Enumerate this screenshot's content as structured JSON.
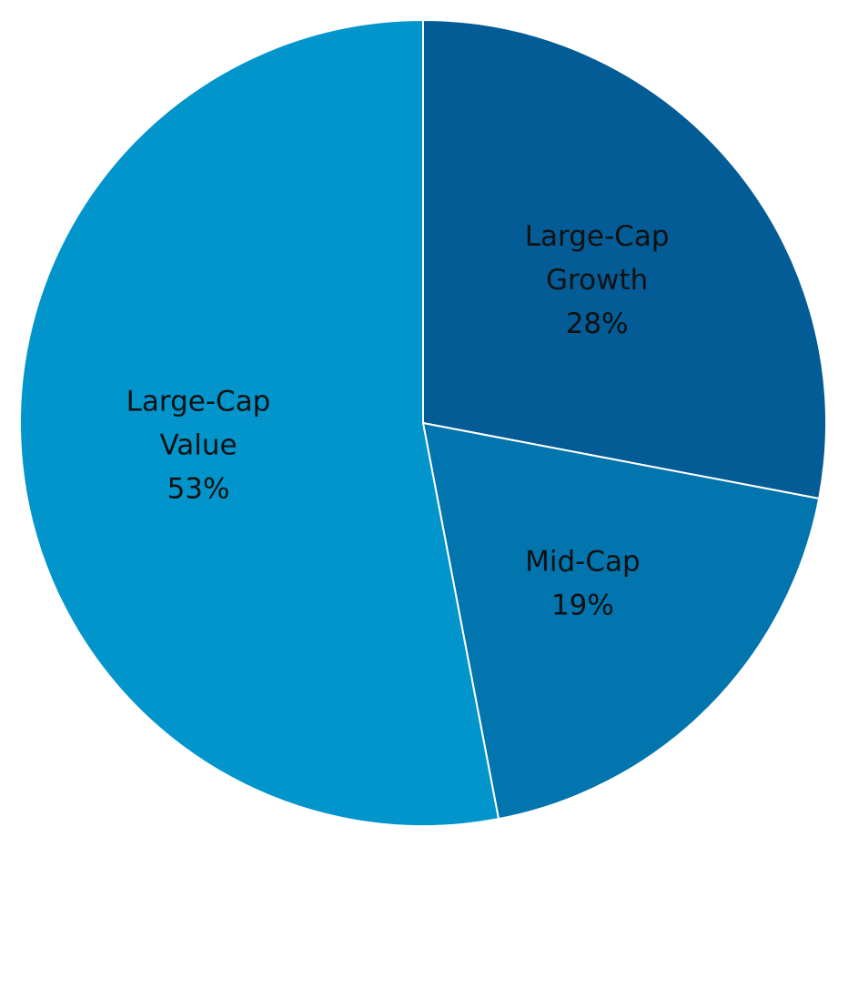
{
  "chart_data": {
    "type": "pie",
    "title": "",
    "start_angle_deg": 90,
    "direction": "clockwise",
    "slices": [
      {
        "name_lines": [
          "Large-Cap",
          "Growth"
        ],
        "percent_label": "28%",
        "value": 28,
        "color": "#045C96"
      },
      {
        "name_lines": [
          "Mid-Cap"
        ],
        "percent_label": "19%",
        "value": 19,
        "color": "#0274AE"
      },
      {
        "name_lines": [
          "Large-Cap",
          "Value"
        ],
        "percent_label": "53%",
        "value": 53,
        "color": "#0295CC"
      }
    ],
    "slice_separator_color": "#FFFFFF",
    "legend": "none",
    "data_labels": "inside"
  }
}
